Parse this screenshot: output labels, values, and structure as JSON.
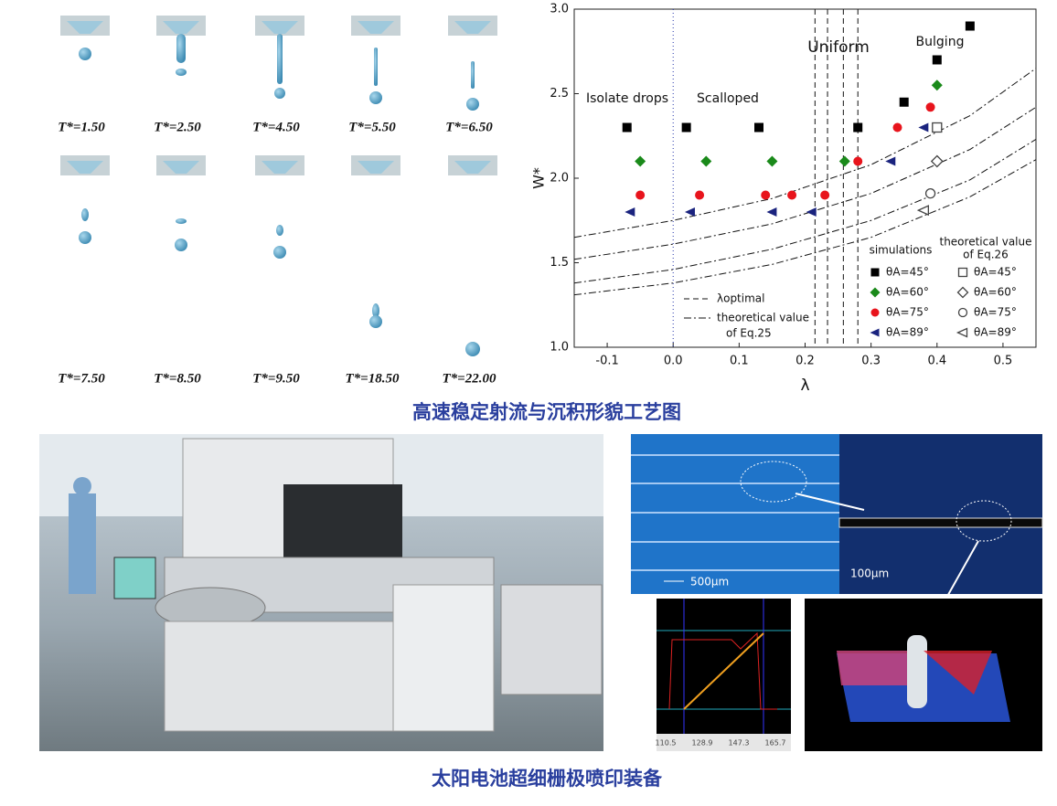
{
  "drops": {
    "labels": [
      "T*=1.50",
      "T*=2.50",
      "T*=4.50",
      "T*=5.50",
      "T*=6.50",
      "T*=7.50",
      "T*=8.50",
      "T*=9.50",
      "T*=18.50",
      "T*=22.00"
    ]
  },
  "captions": {
    "top": "高速稳定射流与沉积形貌工艺图",
    "bottom": "太阳电池超细栅极喷印装备"
  },
  "micrographs": {
    "scale_left": "500μm",
    "scale_right": "100μm",
    "profile_ticks": [
      "110.5",
      "128.9",
      "147.3",
      "165.7"
    ]
  },
  "chart_data": {
    "type": "scatter",
    "x_label": "λ",
    "y_label": "W*",
    "xlim": [
      -0.15,
      0.55
    ],
    "ylim": [
      1.0,
      3.0
    ],
    "xticks": [
      -0.1,
      {
        "value": 0,
        "label": "0.0"
      },
      0.1,
      0.2,
      0.3,
      0.4,
      0.5
    ],
    "yticks": [
      {
        "value": 1,
        "label": "1.0"
      },
      1.5,
      {
        "value": 2,
        "label": "2.0"
      },
      2.5,
      {
        "value": 3,
        "label": "3.0"
      }
    ],
    "annotations": [
      "Isolate drops",
      "Scalloped",
      "Uniform",
      "Bulging"
    ],
    "legend_simulations": "simulations",
    "legend_theory": [
      "theoretical value",
      "of Eq.26"
    ],
    "series": [
      {
        "name": "θA=45°",
        "group": "simulations",
        "marker": "square",
        "color": "#000000",
        "x": [
          -0.07,
          0.02,
          0.13,
          0.28,
          0.35,
          0.4,
          0.45
        ],
        "values": [
          2.3,
          2.3,
          2.3,
          2.3,
          2.45,
          2.7,
          2.9
        ]
      },
      {
        "name": "θA=60°",
        "group": "simulations",
        "marker": "diamond",
        "color": "#1a8a1a",
        "x": [
          -0.05,
          0.05,
          0.15,
          0.26,
          0.4
        ],
        "values": [
          2.1,
          2.1,
          2.1,
          2.1,
          2.55
        ]
      },
      {
        "name": "θA=75°",
        "group": "simulations",
        "marker": "circle",
        "color": "#e8141c",
        "x": [
          -0.05,
          0.04,
          0.14,
          0.18,
          0.23,
          0.28,
          0.34,
          0.39
        ],
        "values": [
          1.9,
          1.9,
          1.9,
          1.9,
          1.9,
          2.1,
          2.3,
          2.42
        ]
      },
      {
        "name": "θA=89°",
        "group": "simulations",
        "marker": "triangle",
        "color": "#1a237e",
        "x": [
          -0.065,
          0.026,
          0.15,
          0.21,
          0.33,
          0.38
        ],
        "values": [
          1.8,
          1.8,
          1.8,
          1.8,
          2.1,
          2.3
        ]
      },
      {
        "name": "θA=45°",
        "group": "theory",
        "marker": "square",
        "color": "#444444",
        "x": [
          0.4
        ],
        "values": [
          2.3
        ]
      },
      {
        "name": "θA=60°",
        "group": "theory",
        "marker": "diamond",
        "color": "#444444",
        "x": [
          0.4
        ],
        "values": [
          2.1
        ]
      },
      {
        "name": "θA=75°",
        "group": "theory",
        "marker": "circle",
        "color": "#444444",
        "x": [
          0.39
        ],
        "values": [
          1.91
        ]
      },
      {
        "name": "θA=89°",
        "group": "theory",
        "marker": "triangle",
        "color": "#444444",
        "x": [
          0.38
        ],
        "values": [
          1.81
        ]
      }
    ],
    "curves": {
      "name": [
        "theoretical value",
        "of Eq.25"
      ],
      "x": [
        -0.15,
        0,
        0.15,
        0.3,
        0.45,
        0.55
      ],
      "values": [
        [
          1.65,
          1.75,
          1.88,
          2.08,
          2.37,
          2.65
        ],
        [
          1.52,
          1.61,
          1.73,
          1.91,
          2.17,
          2.42
        ],
        [
          1.38,
          1.46,
          1.58,
          1.75,
          1.99,
          2.23
        ],
        [
          1.31,
          1.38,
          1.49,
          1.65,
          1.89,
          2.11
        ]
      ]
    },
    "optimal": {
      "name": "λoptimal",
      "x": [
        0.215,
        0.234,
        0.258,
        0.28
      ]
    }
  }
}
